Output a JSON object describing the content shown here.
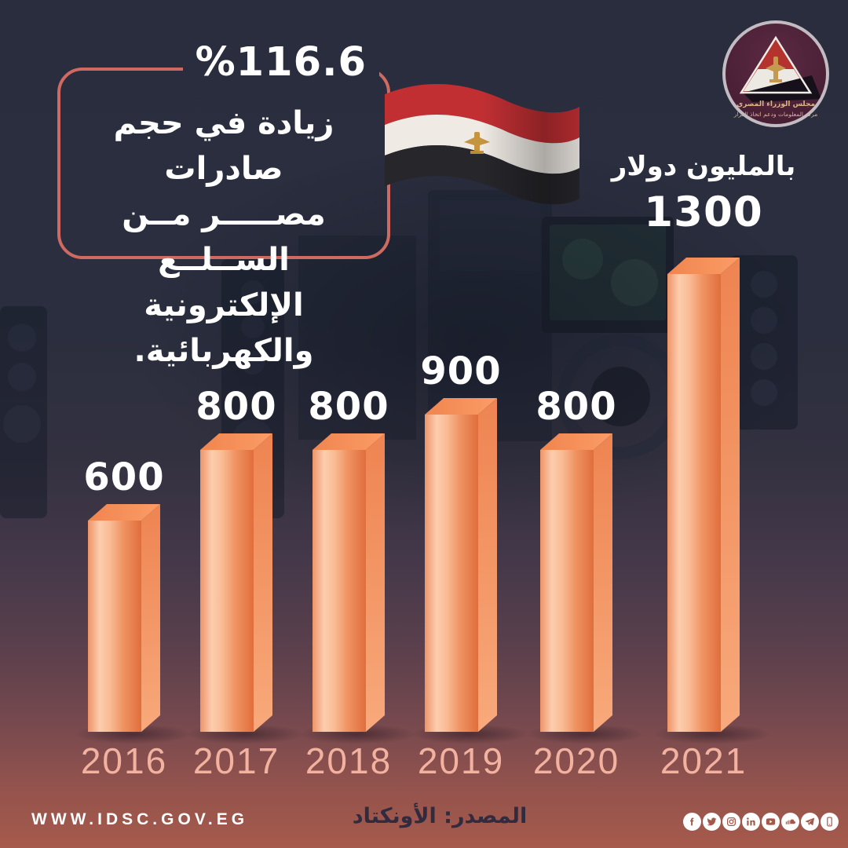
{
  "header": {
    "percent_label": "%116.6",
    "description_lines": [
      "زيادة في حجم صادرات",
      "مصـــــر مــن الســلــع",
      "الإلكترونية والكهربائية."
    ],
    "unit_label": "بالمليون دولار",
    "logo": {
      "org_line1": "مجلس الوزراء المصري",
      "org_line2": "مركز المعلومات ودعم اتخاذ القرار"
    }
  },
  "chart_data": {
    "type": "bar",
    "categories": [
      "2016",
      "2017",
      "2018",
      "2019",
      "2020",
      "2021"
    ],
    "values": [
      600,
      800,
      800,
      900,
      800,
      1300
    ],
    "title": "%116.6 زيادة في حجم صادرات مصر من السلع الإلكترونية والكهربائية.",
    "unit_label": "بالمليون دولار",
    "xlabel": "",
    "ylabel": "",
    "ylim": [
      0,
      1300
    ],
    "grid": false,
    "legend": false,
    "bar_style": "3d",
    "bar_color": "#f0915f",
    "source": "المصدر: الأونكتاد"
  },
  "footer": {
    "website": "WWW.IDSC.GOV.EG",
    "source": "المصدر: الأونكتاد",
    "social": [
      "facebook",
      "twitter",
      "instagram",
      "linkedin",
      "youtube",
      "soundcloud",
      "telegram",
      "mobile-app"
    ]
  },
  "colors": {
    "background_top": "#292d3d",
    "background_bottom": "#a65a4b",
    "card_border": "#cf6a63",
    "bar_front": "#f0915f",
    "bar_side": "#f29b72",
    "year_label": "#f3b2a0",
    "value_label": "#ffffff",
    "source_text": "#302b3f"
  }
}
